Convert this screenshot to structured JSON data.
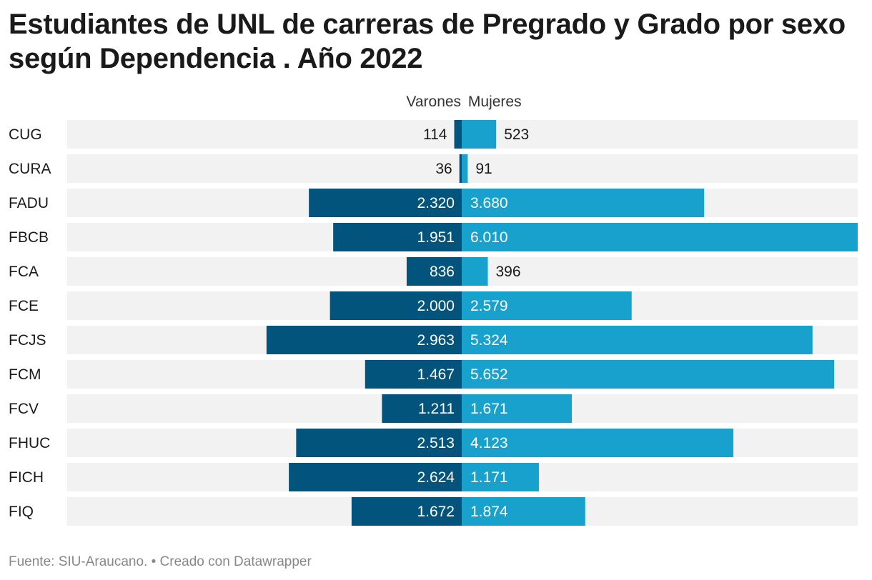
{
  "title": "Estudiantes de UNL de carreras de Pregrado y Grado por sexo según Dependencia . Año 2022",
  "footer": "Fuente: SIU-Araucano. • Creado con Datawrapper",
  "colors": {
    "varones": "#03547c",
    "mujeres": "#18a1cd",
    "row_bg": "#f2f2f2"
  },
  "chart_data": {
    "type": "bar",
    "orientation": "horizontal-diverging",
    "categories": [
      "CUG",
      "CURA",
      "FADU",
      "FBCB",
      "FCA",
      "FCE",
      "FCJS",
      "FCM",
      "FCV",
      "FHUC",
      "FICH",
      "FIQ"
    ],
    "series": [
      {
        "name": "Varones",
        "values": [
          114,
          36,
          2320,
          1951,
          836,
          2000,
          2963,
          1467,
          1211,
          2513,
          2624,
          1672
        ],
        "labels": [
          "114",
          "36",
          "2.320",
          "1.951",
          "836",
          "2.000",
          "2.963",
          "1.467",
          "1.211",
          "2.513",
          "2.624",
          "1.672"
        ]
      },
      {
        "name": "Mujeres",
        "values": [
          523,
          91,
          3680,
          6010,
          396,
          2579,
          5324,
          5652,
          1671,
          4123,
          1171,
          1874
        ],
        "labels": [
          "523",
          "91",
          "3.680",
          "6.010",
          "396",
          "2.579",
          "5.324",
          "5.652",
          "1.671",
          "4.123",
          "1.171",
          "1.874"
        ]
      }
    ],
    "legend_position": "top-center",
    "grid": false
  }
}
